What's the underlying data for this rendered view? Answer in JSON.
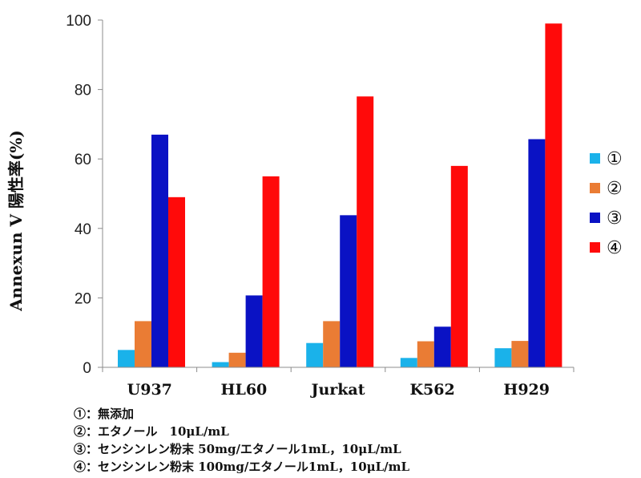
{
  "chart_data": {
    "type": "bar",
    "ylabel": "Annexun V 陽性率(%)",
    "ylim": [
      0,
      100
    ],
    "yticks": [
      0,
      20,
      40,
      60,
      80,
      100
    ],
    "grid": false,
    "legend_position": "right",
    "categories": [
      "U937",
      "HL60",
      "Jurkat",
      "K562",
      "H929"
    ],
    "series": [
      {
        "name": "①",
        "color": "#1ab2ea",
        "values": [
          5,
          1.5,
          7,
          2.7,
          5.5
        ]
      },
      {
        "name": "②",
        "color": "#ea7c34",
        "values": [
          13.3,
          4.2,
          13.3,
          7.5,
          7.6
        ]
      },
      {
        "name": "③",
        "color": "#0a12c4",
        "values": [
          67,
          20.7,
          43.8,
          11.7,
          65.7
        ]
      },
      {
        "name": "④",
        "color": "#ff0a0a",
        "values": [
          49,
          55,
          78,
          58,
          99
        ]
      }
    ],
    "notes": [
      "①：無添加",
      "②：エタノール　10μL/mL",
      "③：センシンレン粉末 50mg/エタノール1mL，10μL/mL",
      "④：センシンレン粉末 100mg/エタノール1mL，10μL/mL"
    ]
  }
}
